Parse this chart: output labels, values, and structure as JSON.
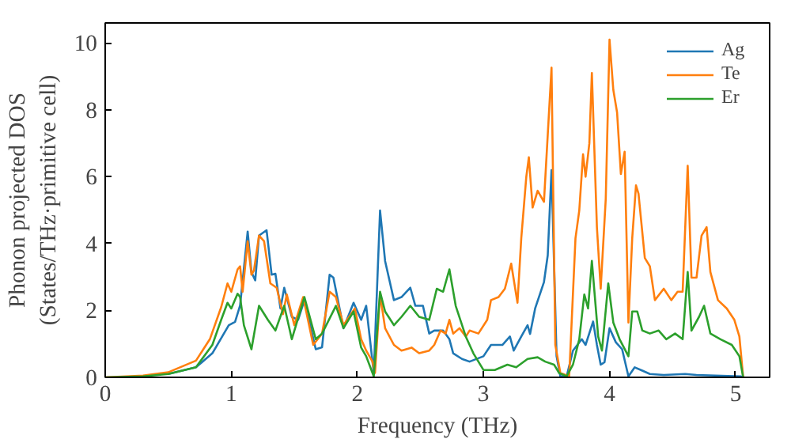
{
  "chart_data": {
    "type": "line",
    "xlabel": "Frequency (THz)",
    "ylabel": "Phonon projected DOS\n(States/THz·primitive cell)",
    "xlim": [
      0,
      5.27
    ],
    "ylim": [
      0,
      10.6
    ],
    "xticks": [
      0,
      1,
      2,
      3,
      4,
      5
    ],
    "yticks": [
      0,
      2,
      4,
      6,
      8,
      10
    ],
    "grid": false,
    "legend": "top right",
    "series": [
      {
        "name": "Ag",
        "color": "#1f77b4",
        "x": [
          0.5,
          0.72,
          0.85,
          0.98,
          1.03,
          1.07,
          1.13,
          1.16,
          1.19,
          1.22,
          1.28,
          1.32,
          1.35,
          1.39,
          1.42,
          1.48,
          1.53,
          1.58,
          1.67,
          1.72,
          1.78,
          1.81,
          1.89,
          1.97,
          2.03,
          2.07,
          2.13,
          2.18,
          2.22,
          2.29,
          2.35,
          2.42,
          2.46,
          2.52,
          2.57,
          2.61,
          2.68,
          2.73,
          2.76,
          2.83,
          2.89,
          3.0,
          3.06,
          3.15,
          3.21,
          3.24,
          3.3,
          3.35,
          3.37,
          3.41,
          3.48,
          3.51,
          3.54,
          3.58,
          3.61,
          3.66,
          3.71,
          3.78,
          3.81,
          3.87,
          3.9,
          3.93,
          3.96,
          4.0,
          4.05,
          4.1,
          4.15,
          4.2,
          4.26,
          4.32,
          4.43,
          4.6,
          4.69,
          5.04,
          5.06
        ],
        "values": [
          0.1,
          0.3,
          0.72,
          1.56,
          1.66,
          2.15,
          4.36,
          3.15,
          2.9,
          4.24,
          4.4,
          3.07,
          3.1,
          2.06,
          2.68,
          1.81,
          1.72,
          2.31,
          0.84,
          0.9,
          3.07,
          2.98,
          1.47,
          2.23,
          1.72,
          2.14,
          0.13,
          4.99,
          3.48,
          2.31,
          2.4,
          2.68,
          2.14,
          2.14,
          1.31,
          1.4,
          1.4,
          1.14,
          0.72,
          0.55,
          0.47,
          0.63,
          0.97,
          0.97,
          1.22,
          0.8,
          1.22,
          1.56,
          1.3,
          2.06,
          2.85,
          3.65,
          6.2,
          0.63,
          0.03,
          0.03,
          0.8,
          1.14,
          0.97,
          1.67,
          0.97,
          0.38,
          0.45,
          1.47,
          1.05,
          0.84,
          0.03,
          0.3,
          0.2,
          0.1,
          0.07,
          0.1,
          0.07,
          0.03,
          0
        ]
      },
      {
        "name": "Te",
        "color": "#ff7f0e",
        "x": [
          0,
          0.3,
          0.5,
          0.72,
          0.83,
          0.92,
          0.97,
          1.0,
          1.05,
          1.07,
          1.09,
          1.13,
          1.16,
          1.18,
          1.22,
          1.26,
          1.31,
          1.36,
          1.41,
          1.44,
          1.5,
          1.57,
          1.65,
          1.72,
          1.78,
          1.83,
          1.89,
          1.98,
          2.03,
          2.07,
          2.12,
          2.14,
          2.18,
          2.22,
          2.29,
          2.35,
          2.43,
          2.49,
          2.57,
          2.61,
          2.66,
          2.7,
          2.73,
          2.76,
          2.81,
          2.86,
          2.89,
          2.96,
          3.03,
          3.06,
          3.12,
          3.17,
          3.22,
          3.27,
          3.3,
          3.34,
          3.36,
          3.39,
          3.43,
          3.48,
          3.54,
          3.57,
          3.61,
          3.68,
          3.73,
          3.76,
          3.79,
          3.81,
          3.84,
          3.86,
          3.9,
          3.93,
          3.97,
          4.0,
          4.03,
          4.06,
          4.09,
          4.12,
          4.15,
          4.18,
          4.21,
          4.23,
          4.28,
          4.32,
          4.36,
          4.43,
          4.49,
          4.54,
          4.58,
          4.62,
          4.65,
          4.69,
          4.73,
          4.77,
          4.8,
          4.86,
          4.93,
          4.99,
          5.03,
          5.06
        ],
        "values": [
          0,
          0.05,
          0.15,
          0.5,
          1.14,
          2.1,
          2.81,
          2.56,
          3.23,
          3.32,
          2.56,
          4.07,
          3.07,
          3.2,
          4.24,
          4.07,
          2.81,
          2.68,
          1.89,
          2.48,
          1.56,
          2.4,
          0.97,
          1.31,
          2.56,
          2.4,
          1.56,
          2.06,
          1.14,
          0.8,
          0.47,
          0.13,
          2.48,
          1.47,
          0.97,
          0.8,
          0.89,
          0.72,
          0.8,
          0.97,
          1.4,
          1.31,
          1.72,
          1.31,
          1.47,
          1.22,
          1.4,
          1.31,
          1.72,
          2.31,
          2.4,
          2.65,
          3.4,
          2.23,
          4.16,
          6.0,
          6.58,
          5.08,
          5.58,
          5.25,
          9.26,
          0.97,
          0.13,
          0.03,
          4.16,
          4.99,
          6.67,
          6.0,
          7.0,
          9.1,
          4.49,
          2.65,
          5.33,
          10.1,
          8.6,
          7.92,
          6.08,
          6.75,
          1.64,
          4.16,
          5.74,
          5.49,
          3.57,
          3.32,
          2.31,
          2.65,
          2.31,
          2.56,
          2.56,
          6.33,
          2.98,
          2.98,
          4.24,
          4.49,
          3.15,
          2.31,
          2.06,
          1.72,
          1.22,
          0
        ]
      },
      {
        "name": "Er",
        "color": "#2ca02c",
        "x": [
          0,
          0.3,
          0.5,
          0.72,
          0.85,
          0.92,
          0.97,
          1.0,
          1.05,
          1.07,
          1.1,
          1.16,
          1.22,
          1.29,
          1.35,
          1.42,
          1.48,
          1.58,
          1.67,
          1.72,
          1.83,
          1.89,
          1.97,
          2.03,
          2.07,
          2.13,
          2.18,
          2.22,
          2.29,
          2.35,
          2.42,
          2.49,
          2.57,
          2.63,
          2.68,
          2.73,
          2.78,
          2.86,
          2.92,
          3.0,
          3.09,
          3.19,
          3.26,
          3.35,
          3.43,
          3.49,
          3.56,
          3.6,
          3.66,
          3.71,
          3.76,
          3.8,
          3.83,
          3.86,
          3.91,
          3.94,
          3.99,
          4.03,
          4.08,
          4.15,
          4.18,
          4.22,
          4.26,
          4.32,
          4.39,
          4.45,
          4.52,
          4.58,
          4.62,
          4.65,
          4.71,
          4.75,
          4.8,
          4.88,
          4.97,
          5.03,
          5.06
        ],
        "values": [
          0,
          0.03,
          0.1,
          0.3,
          0.97,
          1.72,
          2.23,
          2.06,
          2.5,
          2.4,
          1.56,
          0.84,
          2.14,
          1.72,
          1.4,
          2.14,
          1.14,
          2.4,
          1.14,
          1.31,
          2.14,
          1.47,
          1.97,
          0.89,
          0.63,
          0.03,
          2.56,
          1.97,
          1.56,
          1.81,
          2.14,
          1.81,
          1.72,
          2.65,
          2.56,
          3.23,
          2.14,
          1.22,
          0.72,
          0.22,
          0.22,
          0.38,
          0.3,
          0.55,
          0.6,
          0.47,
          0.38,
          0.13,
          0.03,
          0.38,
          1.14,
          2.48,
          2.06,
          3.48,
          1.22,
          0.8,
          2.81,
          1.64,
          1.14,
          0.63,
          1.97,
          1.97,
          1.4,
          1.31,
          1.4,
          1.14,
          1.31,
          1.14,
          3.15,
          1.4,
          1.81,
          2.14,
          1.31,
          1.14,
          0.97,
          0.63,
          0
        ]
      }
    ]
  }
}
